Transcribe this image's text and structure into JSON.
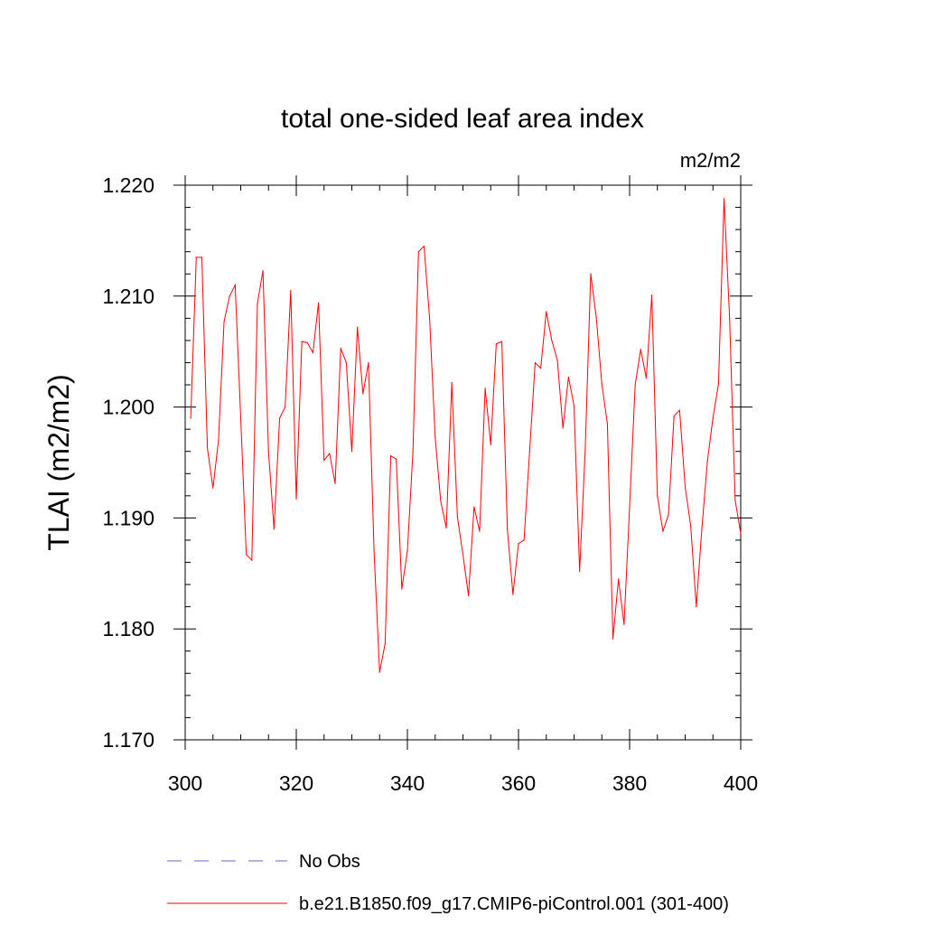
{
  "chart_data": {
    "type": "line",
    "title": "total one-sided leaf area index",
    "units": "m2/m2",
    "xlabel": "",
    "ylabel": "TLAI  (m2/m2)",
    "xlim": [
      300,
      400
    ],
    "ylim": [
      1.17,
      1.22
    ],
    "xticks": [
      300,
      320,
      340,
      360,
      380,
      400
    ],
    "xtick_labels": [
      "300",
      "320",
      "340",
      "360",
      "380",
      "400"
    ],
    "yticks": [
      1.17,
      1.18,
      1.19,
      1.2,
      1.21,
      1.22
    ],
    "ytick_labels": [
      "1.170",
      "1.180",
      "1.190",
      "1.200",
      "1.210",
      "1.220"
    ],
    "grid": false,
    "legend_position": "bottom",
    "legend": [
      {
        "label": "No Obs",
        "color": "#8a85c8",
        "dash": true
      },
      {
        "label": "b.e21.B1850.f09_g17.CMIP6-piControl.001 (301-400)",
        "color": "#ff0000",
        "dash": false
      }
    ],
    "series": [
      {
        "name": "b.e21.B1850.f09_g17.CMIP6-piControl.001 (301-400)",
        "color": "#ff0000",
        "x": [
          301,
          302,
          303,
          304,
          305,
          306,
          307,
          308,
          309,
          310,
          311,
          312,
          313,
          314,
          315,
          316,
          317,
          318,
          319,
          320,
          321,
          322,
          323,
          324,
          325,
          326,
          327,
          328,
          329,
          330,
          331,
          332,
          333,
          334,
          335,
          336,
          337,
          338,
          339,
          340,
          341,
          342,
          343,
          344,
          345,
          346,
          347,
          348,
          349,
          350,
          351,
          352,
          353,
          354,
          355,
          356,
          357,
          358,
          359,
          360,
          361,
          362,
          363,
          364,
          365,
          366,
          367,
          368,
          369,
          370,
          371,
          372,
          373,
          374,
          375,
          376,
          377,
          378,
          379,
          380,
          381,
          382,
          383,
          384,
          385,
          386,
          387,
          388,
          389,
          390,
          391,
          392,
          393,
          394,
          395,
          396,
          397,
          398,
          399,
          400
        ],
        "values": [
          1.199,
          1.2135,
          1.2135,
          1.1963,
          1.1927,
          1.197,
          1.2077,
          1.21,
          1.211,
          1.199,
          1.1867,
          1.1862,
          1.2093,
          1.2123,
          1.196,
          1.189,
          1.199,
          1.2,
          1.2105,
          1.1917,
          1.2059,
          1.2058,
          1.2049,
          1.2094,
          1.1952,
          1.1958,
          1.1931,
          1.2053,
          1.204,
          1.196,
          1.2072,
          1.2012,
          1.204,
          1.187,
          1.1761,
          1.1787,
          1.1956,
          1.1953,
          1.1836,
          1.187,
          1.196,
          1.214,
          1.2145,
          1.208,
          1.1973,
          1.1915,
          1.1891,
          1.2022,
          1.1901,
          1.1867,
          1.183,
          1.191,
          1.1888,
          1.2017,
          1.1966,
          1.2057,
          1.2059,
          1.189,
          1.1831,
          1.1877,
          1.188,
          1.196,
          1.204,
          1.2035,
          1.2086,
          1.206,
          1.2042,
          1.1981,
          1.2027,
          1.2001,
          1.1852,
          1.196,
          1.212,
          1.2081,
          1.2021,
          1.1985,
          1.1791,
          1.1845,
          1.1804,
          1.191,
          1.202,
          1.2052,
          1.2026,
          1.2101,
          1.192,
          1.1888,
          1.1903,
          1.1992,
          1.1997,
          1.1928,
          1.1893,
          1.182,
          1.189,
          1.1951,
          1.199,
          1.2021,
          1.2188,
          1.208,
          1.1916,
          1.1886
        ]
      }
    ]
  }
}
